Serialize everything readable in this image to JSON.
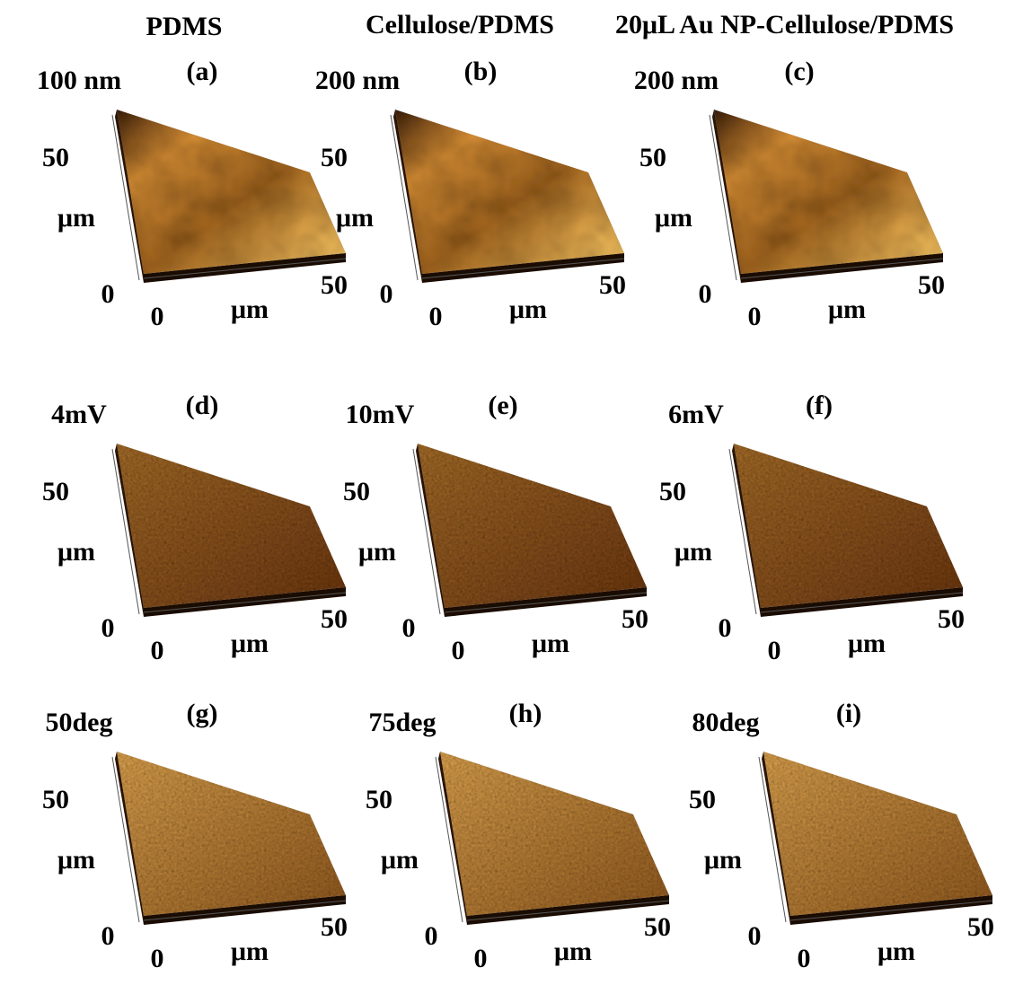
{
  "column_titles": [
    "PDMS",
    "Cellulose/PDMS",
    "20μL Au NP-Cellulose/PDMS"
  ],
  "panels": [
    {
      "label": "(a)",
      "z_scale": "100 nm",
      "y_max": 50,
      "y_unit": "μm",
      "y_min": 0,
      "x_min": 0,
      "x_unit": "μm",
      "x_max": 50
    },
    {
      "label": "(b)",
      "z_scale": "200 nm",
      "y_max": 50,
      "y_unit": "μm",
      "y_min": 0,
      "x_min": 0,
      "x_unit": "μm",
      "x_max": 50
    },
    {
      "label": "(c)",
      "z_scale": "200 nm",
      "y_max": 50,
      "y_unit": "μm",
      "y_min": 0,
      "x_min": 0,
      "x_unit": "μm",
      "x_max": 50
    },
    {
      "label": "(d)",
      "z_scale": "4mV",
      "y_max": 50,
      "y_unit": "μm",
      "y_min": 0,
      "x_min": 0,
      "x_unit": "μm",
      "x_max": 50
    },
    {
      "label": "(e)",
      "z_scale": "10mV",
      "y_max": 50,
      "y_unit": "μm",
      "y_min": 0,
      "x_min": 0,
      "x_unit": "μm",
      "x_max": 50
    },
    {
      "label": "(f)",
      "z_scale": "6mV",
      "y_max": 50,
      "y_unit": "μm",
      "y_min": 0,
      "x_min": 0,
      "x_unit": "μm",
      "x_max": 50
    },
    {
      "label": "(g)",
      "z_scale": "50deg",
      "y_max": 50,
      "y_unit": "μm",
      "y_min": 0,
      "x_min": 0,
      "x_unit": "μm",
      "x_max": 50
    },
    {
      "label": "(h)",
      "z_scale": "75deg",
      "y_max": 50,
      "y_unit": "μm",
      "y_min": 0,
      "x_min": 0,
      "x_unit": "μm",
      "x_max": 50
    },
    {
      "label": "(i)",
      "z_scale": "80deg",
      "y_max": 50,
      "y_unit": "μm",
      "y_min": 0,
      "x_min": 0,
      "x_unit": "μm",
      "x_max": 50
    }
  ]
}
